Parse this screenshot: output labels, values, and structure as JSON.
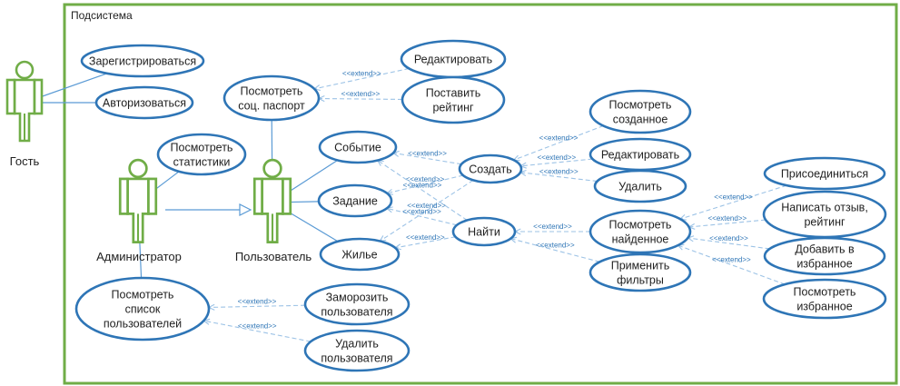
{
  "system": {
    "title": "Подсистема"
  },
  "actors": [
    {
      "id": "guest",
      "name": "Гость"
    },
    {
      "id": "admin",
      "name": "Администратор"
    },
    {
      "id": "user",
      "name": "Пользователь"
    }
  ],
  "usecases": [
    {
      "id": "register",
      "lines": [
        "Зарегистрироваться"
      ]
    },
    {
      "id": "login",
      "lines": [
        "Авторизоваться"
      ]
    },
    {
      "id": "view_passport",
      "lines": [
        "Посмотреть",
        "соц. паспорт"
      ]
    },
    {
      "id": "edit_profile",
      "lines": [
        "Редактировать"
      ]
    },
    {
      "id": "rate",
      "lines": [
        "Поставить",
        "рейтинг"
      ]
    },
    {
      "id": "view_stats",
      "lines": [
        "Посмотреть",
        "статистики"
      ]
    },
    {
      "id": "event",
      "lines": [
        "Событие"
      ]
    },
    {
      "id": "task",
      "lines": [
        "Задание"
      ]
    },
    {
      "id": "housing",
      "lines": [
        "Жилье"
      ]
    },
    {
      "id": "create",
      "lines": [
        "Создать"
      ]
    },
    {
      "id": "find",
      "lines": [
        "Найти"
      ]
    },
    {
      "id": "view_created",
      "lines": [
        "Посмотреть",
        "созданное"
      ]
    },
    {
      "id": "edit",
      "lines": [
        "Редактировать"
      ]
    },
    {
      "id": "delete",
      "lines": [
        "Удалить"
      ]
    },
    {
      "id": "view_found",
      "lines": [
        "Посмотреть",
        "найденное"
      ]
    },
    {
      "id": "filters",
      "lines": [
        "Применить",
        "фильтры"
      ]
    },
    {
      "id": "join",
      "lines": [
        "Присоединиться"
      ]
    },
    {
      "id": "review",
      "lines": [
        "Написать отзыв,",
        "рейтинг"
      ]
    },
    {
      "id": "add_fav",
      "lines": [
        "Добавить в",
        "избранное"
      ]
    },
    {
      "id": "view_fav",
      "lines": [
        "Посмотреть",
        "избранное"
      ]
    },
    {
      "id": "user_list",
      "lines": [
        "Посмотреть",
        "список",
        "пользователей"
      ]
    },
    {
      "id": "freeze",
      "lines": [
        "Заморозить",
        "пользователя"
      ]
    },
    {
      "id": "del_user",
      "lines": [
        "Удалить",
        "пользователя"
      ]
    }
  ],
  "associations": [
    [
      "guest",
      "register"
    ],
    [
      "guest",
      "login"
    ],
    [
      "admin",
      "view_stats"
    ],
    [
      "admin",
      "user_list"
    ],
    [
      "user",
      "view_passport"
    ],
    [
      "user",
      "event"
    ],
    [
      "user",
      "task"
    ],
    [
      "user",
      "housing"
    ]
  ],
  "generalizations": [
    [
      "admin",
      "user"
    ]
  ],
  "extends": [
    {
      "from": "edit_profile",
      "to": "view_passport",
      "label": "<<extend>>"
    },
    {
      "from": "rate",
      "to": "view_passport",
      "label": "<<extend>>"
    },
    {
      "from": "create",
      "to": "event",
      "label": "<<extend>>"
    },
    {
      "from": "create",
      "to": "task",
      "label": "<<extend>>"
    },
    {
      "from": "create",
      "to": "housing",
      "label": "<<extend>>"
    },
    {
      "from": "find",
      "to": "event",
      "label": "<<extend>>"
    },
    {
      "from": "find",
      "to": "task",
      "label": "<<extend>>"
    },
    {
      "from": "find",
      "to": "housing",
      "label": "<<extend>>"
    },
    {
      "from": "view_created",
      "to": "create",
      "label": "<<extend>>"
    },
    {
      "from": "edit",
      "to": "create",
      "label": "<<extend>>"
    },
    {
      "from": "delete",
      "to": "create",
      "label": "<<extend>>"
    },
    {
      "from": "view_found",
      "to": "find",
      "label": "<<extend>>"
    },
    {
      "from": "filters",
      "to": "find",
      "label": "<<extend>>"
    },
    {
      "from": "join",
      "to": "view_found",
      "label": "<<extend>>"
    },
    {
      "from": "review",
      "to": "view_found",
      "label": "<<extend>>"
    },
    {
      "from": "add_fav",
      "to": "view_found",
      "label": "<<extend>>"
    },
    {
      "from": "view_fav",
      "to": "view_found",
      "label": "<<extend>>"
    },
    {
      "from": "freeze",
      "to": "user_list",
      "label": "<<extend>>"
    },
    {
      "from": "del_user",
      "to": "user_list",
      "label": "<<extend>>"
    }
  ],
  "colors": {
    "system_border": "#70ad47",
    "actor_stroke": "#70ad47",
    "usecase_stroke": "#2e75b6",
    "usecase_fill": "#ffffff",
    "line": "#5b9bd5",
    "dashed": "#9dc3e6",
    "text": "#1f1f1f",
    "extend_text": "#2e75b6"
  }
}
